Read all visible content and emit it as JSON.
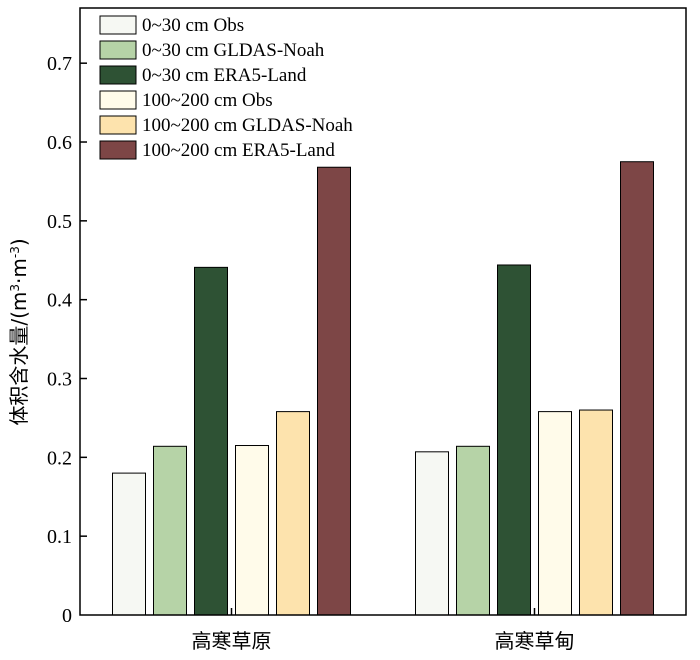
{
  "chart_data": {
    "type": "bar",
    "categories": [
      "高寒草原",
      "高寒草甸"
    ],
    "series": [
      {
        "name": "0~30 cm Obs",
        "values": [
          0.18,
          0.207
        ],
        "color": "#f6f8f3"
      },
      {
        "name": "0~30 cm GLDAS-Noah",
        "values": [
          0.214,
          0.214
        ],
        "color": "#b6d3a7"
      },
      {
        "name": "0~30 cm ERA5-Land",
        "values": [
          0.441,
          0.444
        ],
        "color": "#2e5234"
      },
      {
        "name": "100~200 cm Obs",
        "values": [
          0.215,
          0.258
        ],
        "color": "#fffbea"
      },
      {
        "name": "100~200 cm GLDAS-Noah",
        "values": [
          0.258,
          0.26
        ],
        "color": "#fde3ad"
      },
      {
        "name": "100~200 cm ERA5-Land",
        "values": [
          0.568,
          0.575
        ],
        "color": "#7d4646"
      }
    ],
    "ylabel_main": "体积含水量/(m",
    "ylabel_sup1": "3",
    "ylabel_mid": "·m",
    "ylabel_sup2": "-3",
    "ylabel_end": ")",
    "ylim": [
      0,
      0.77
    ],
    "yticks": [
      0,
      0.1,
      0.2,
      0.3,
      0.4,
      0.5,
      0.6,
      0.7
    ],
    "ytick_labels": [
      "0",
      "0.1",
      "0.2",
      "0.3",
      "0.4",
      "0.5",
      "0.6",
      "0.7"
    ],
    "legend_position": "top-left",
    "grid": false
  }
}
